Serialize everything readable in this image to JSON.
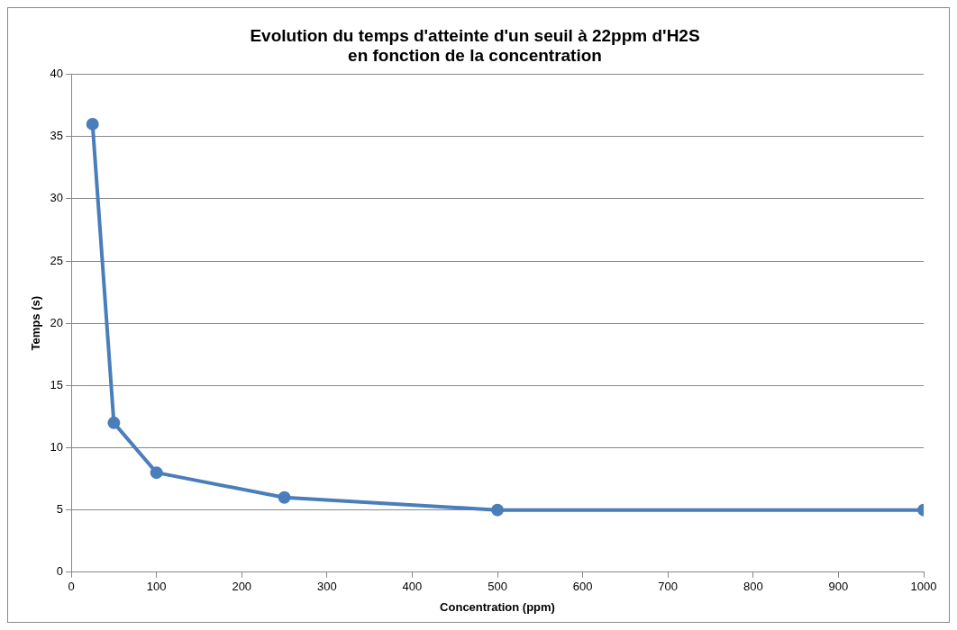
{
  "chart_data": {
    "type": "line",
    "title": "Evolution du temps d'atteinte d'un seuil à 22ppm d'H2S\nen fonction de la concentration",
    "xlabel": "Concentration (ppm)",
    "ylabel": "Temps (s)",
    "x": [
      25,
      50,
      100,
      250,
      500,
      1000
    ],
    "series": [
      {
        "color": "#4a7ebb",
        "values": [
          36,
          12,
          8,
          6,
          5,
          5
        ]
      }
    ],
    "xlim": [
      0,
      1000
    ],
    "xticks": [
      0,
      100,
      200,
      300,
      400,
      500,
      600,
      700,
      800,
      900,
      1000
    ],
    "ylim": [
      0,
      40
    ],
    "yticks": [
      0,
      5,
      10,
      15,
      20,
      25,
      30,
      35,
      40
    ],
    "grid": "y",
    "legend": false,
    "marker": "circle",
    "line_style": "solid"
  }
}
